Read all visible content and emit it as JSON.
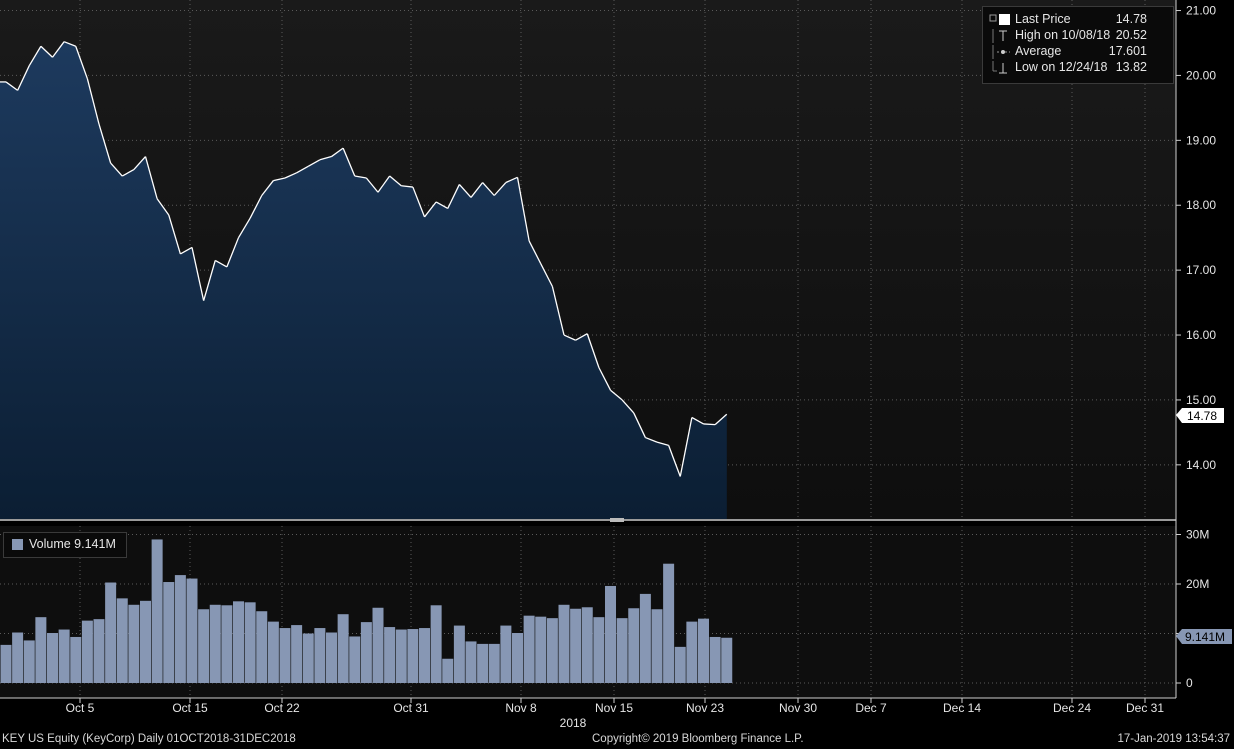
{
  "legend": {
    "last_price": {
      "label": "Last Price",
      "value": "14.78"
    },
    "high": {
      "label": "High on 10/08/18",
      "value": "20.52"
    },
    "average": {
      "label": "Average",
      "value": "17.601"
    },
    "low": {
      "label": "Low on 12/24/18",
      "value": "13.82"
    }
  },
  "volume_legend": {
    "label": "Volume 9.141M"
  },
  "last_price_tag": "14.78",
  "last_volume_tag": "9.141M",
  "footer": {
    "left": "KEY US Equity (KeyCorp)  Daily 01OCT2018-31DEC2018",
    "center": "Copyright© 2019 Bloomberg Finance L.P.",
    "right": "17-Jan-2019 13:54:37"
  },
  "colors": {
    "background": "#000000",
    "area_top": "#1d3a5e",
    "area_bottom": "#0b1e33",
    "price_line": "#ffffff",
    "volume_bar": "#8797b4",
    "grid": "#5a5a5a"
  },
  "chart_data": [
    {
      "type": "area",
      "series": [
        {
          "name": "Last Price",
          "values": [
            19.9,
            19.77,
            20.15,
            20.45,
            20.28,
            20.52,
            20.45,
            19.95,
            19.25,
            18.65,
            18.45,
            18.55,
            18.75,
            18.1,
            17.85,
            17.25,
            17.35,
            16.53,
            17.15,
            17.05,
            17.5,
            17.8,
            18.15,
            18.38,
            18.42,
            18.5,
            18.6,
            18.7,
            18.75,
            18.88,
            18.45,
            18.42,
            18.2,
            18.45,
            18.3,
            18.28,
            17.82,
            18.05,
            17.95,
            18.32,
            18.12,
            18.35,
            18.15,
            18.35,
            18.43,
            17.45,
            17.1,
            16.75,
            16.0,
            15.92,
            16.02,
            15.5,
            15.15,
            15.0,
            14.8,
            14.42,
            14.35,
            14.3,
            13.82,
            14.73,
            14.63,
            14.62,
            14.78
          ]
        }
      ],
      "x_tick_labels": [
        "Oct 5",
        "Oct 15",
        "Oct 22",
        "Oct 31",
        "Nov 8",
        "Nov 15",
        "Nov 23",
        "Nov 30",
        "Dec 7",
        "Dec 14",
        "Dec 24",
        "Dec 31"
      ],
      "x_year_label": "2018",
      "y_tick_labels": [
        "14.00",
        "15.00",
        "16.00",
        "17.00",
        "18.00",
        "19.00",
        "20.00",
        "21.00"
      ],
      "ylim": [
        13.15,
        21.1
      ],
      "grid": true
    },
    {
      "type": "bar",
      "series": [
        {
          "name": "Volume",
          "values": [
            7.7,
            10.2,
            8.6,
            13.3,
            10.1,
            10.8,
            9.3,
            12.6,
            12.9,
            20.3,
            17.1,
            15.8,
            16.6,
            29.0,
            20.4,
            21.8,
            21.1,
            14.9,
            15.8,
            15.7,
            16.5,
            16.3,
            14.5,
            12.4,
            11.1,
            11.7,
            10.0,
            11.1,
            10.2,
            13.9,
            9.4,
            12.3,
            15.2,
            11.3,
            10.8,
            10.9,
            11.1,
            15.7,
            4.9,
            11.6,
            8.4,
            7.9,
            7.9,
            11.6,
            10.1,
            13.6,
            13.4,
            13.1,
            15.8,
            15.0,
            15.3,
            13.3,
            19.6,
            13.1,
            15.1,
            18.0,
            14.9,
            24.1,
            7.3,
            12.4,
            13.0,
            9.3,
            9.141
          ]
        }
      ],
      "y_tick_labels": [
        "0",
        "10M",
        "20M",
        "30M"
      ],
      "ylim": [
        0,
        30
      ],
      "unit": "M"
    }
  ]
}
